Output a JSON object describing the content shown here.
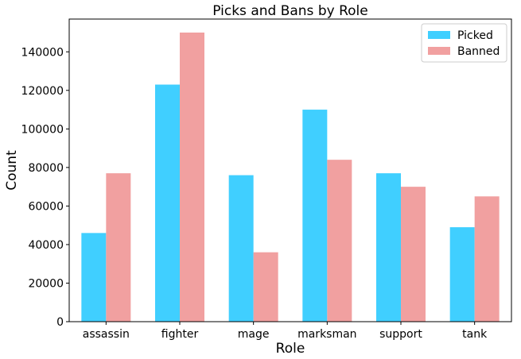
{
  "chart_data": {
    "type": "bar",
    "title": "Picks and Bans by Role",
    "xlabel": "Role",
    "ylabel": "Count",
    "categories": [
      "assassin",
      "fighter",
      "mage",
      "marksman",
      "support",
      "tank"
    ],
    "series": [
      {
        "name": "Picked",
        "color": "#40cfff",
        "values": [
          46000,
          123000,
          76000,
          110000,
          77000,
          49000
        ]
      },
      {
        "name": "Banned",
        "color": "#f1a0a0",
        "values": [
          77000,
          150000,
          36000,
          84000,
          70000,
          65000
        ]
      }
    ],
    "ylim": [
      0,
      157000
    ],
    "yticks": [
      0,
      20000,
      40000,
      60000,
      80000,
      100000,
      120000,
      140000
    ],
    "grid": false,
    "legend_position": "top-right"
  }
}
